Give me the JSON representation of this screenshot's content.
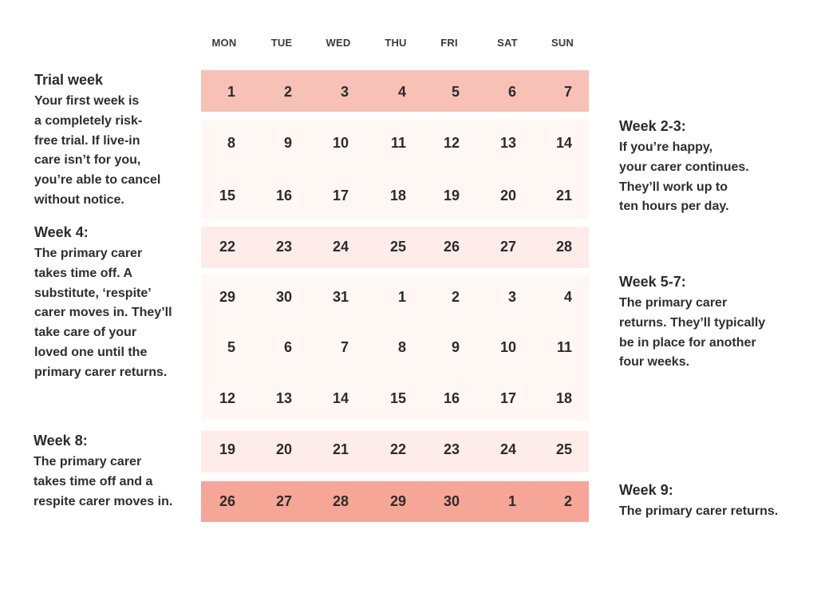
{
  "colors": {
    "trial_band": "#f7c1b6",
    "week2_3_band": "#fef7f4",
    "week4_band": "#fdecea",
    "week5_7_band": "#fef7f4",
    "week8_band": "#fdecea",
    "week9_band": "#f5a697"
  },
  "calendar": {
    "day_headers": [
      "MON",
      "TUE",
      "WED",
      "THU",
      "FRI",
      "SAT",
      "SUN"
    ],
    "weeks": [
      [
        "1",
        "2",
        "3",
        "4",
        "5",
        "6",
        "7"
      ],
      [
        "8",
        "9",
        "10",
        "11",
        "12",
        "13",
        "14"
      ],
      [
        "15",
        "16",
        "17",
        "18",
        "19",
        "20",
        "21"
      ],
      [
        "22",
        "23",
        "24",
        "25",
        "26",
        "27",
        "28"
      ],
      [
        "29",
        "30",
        "31",
        "1",
        "2",
        "3",
        "4"
      ],
      [
        "5",
        "6",
        "7",
        "8",
        "9",
        "10",
        "11"
      ],
      [
        "12",
        "13",
        "14",
        "15",
        "16",
        "17",
        "18"
      ],
      [
        "19",
        "20",
        "21",
        "22",
        "23",
        "24",
        "25"
      ],
      [
        "26",
        "27",
        "28",
        "29",
        "30",
        "1",
        "2"
      ]
    ]
  },
  "notes": {
    "trial": {
      "title": "Trial week",
      "lines": [
        "Your first week is",
        "a completely risk-",
        "free trial. If live-in",
        "care isn’t for you,",
        "you’re able to cancel",
        "without notice."
      ]
    },
    "week2_3": {
      "title": "Week 2-3:",
      "lines": [
        "If you’re happy,",
        "your carer continues.",
        "They’ll work up to",
        "ten hours per day."
      ]
    },
    "week4": {
      "title": "Week 4:",
      "lines": [
        "The primary carer",
        "takes time off. A",
        "substitute, ‘respite’",
        "carer moves in. They’ll",
        "take care of your",
        "loved one until the",
        "primary carer returns."
      ]
    },
    "week5_7": {
      "title": "Week 5-7:",
      "lines": [
        "The primary carer",
        "returns. They’ll typically",
        "be in place for another",
        "four weeks."
      ]
    },
    "week8": {
      "title": "Week 8:",
      "lines": [
        "The primary carer",
        "takes time off and a",
        "respite carer moves in."
      ]
    },
    "week9": {
      "title": "Week 9:",
      "lines": [
        "The primary carer returns."
      ]
    }
  }
}
